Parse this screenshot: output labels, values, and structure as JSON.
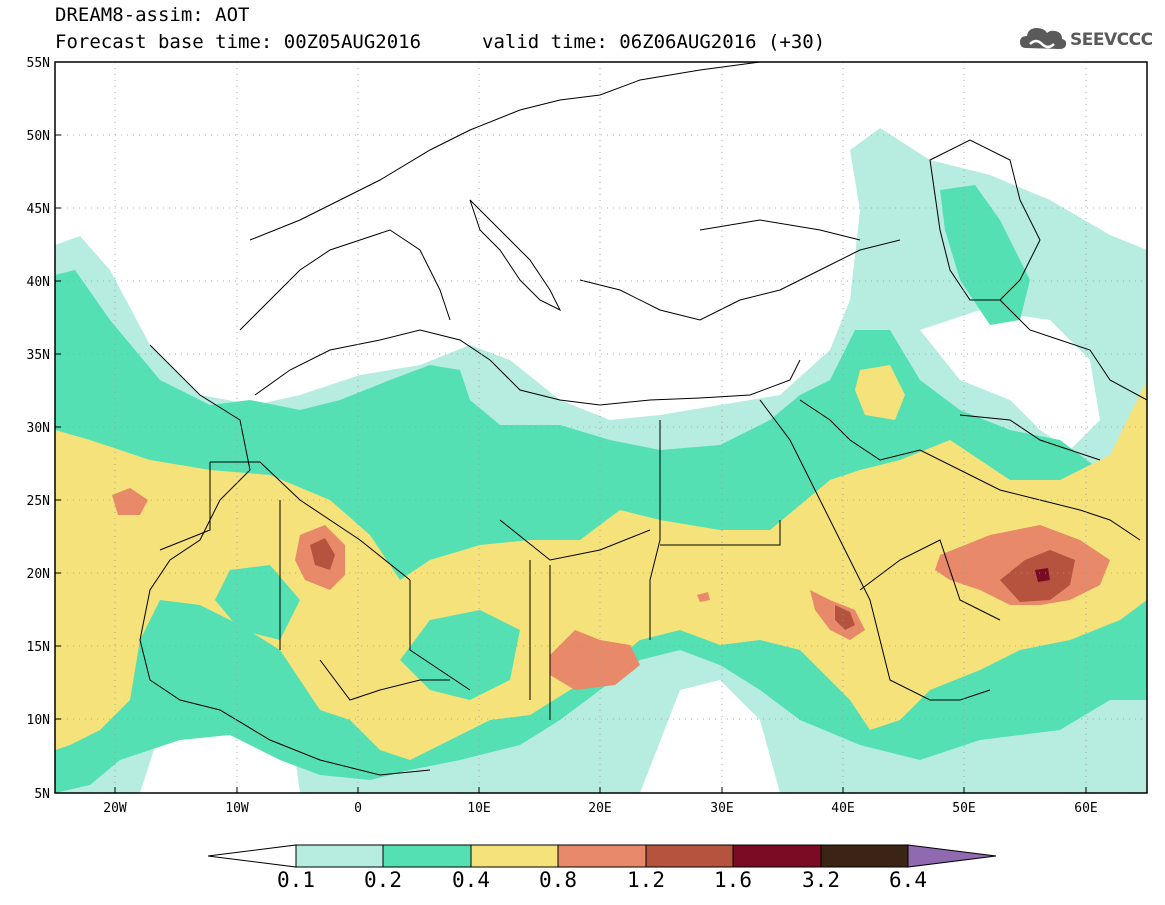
{
  "header": {
    "title": "DREAM8-assim: AOT",
    "base_time": "Forecast base time: 00Z05AUG2016",
    "valid_time": "valid time: 06Z06AUG2016 (+30)",
    "logo_text": "SEEVCCC"
  },
  "map": {
    "lat_labels": [
      "55N",
      "50N",
      "45N",
      "40N",
      "35N",
      "30N",
      "25N",
      "20N",
      "15N",
      "10N",
      "5N"
    ],
    "lon_labels": [
      "20W",
      "10W",
      "0",
      "10E",
      "20E",
      "30E",
      "40E",
      "50E",
      "60E"
    ],
    "extent": {
      "lon_min": -25,
      "lon_max": 65,
      "lat_min": 5,
      "lat_max": 55
    },
    "grid": "dotted"
  },
  "colorbar": {
    "levels": [
      "0.1",
      "0.2",
      "0.4",
      "0.8",
      "1.2",
      "1.6",
      "3.2",
      "6.4"
    ],
    "colors": {
      "under": "#ffffff",
      "c1": "#b6ede0",
      "c2": "#55e0b4",
      "c3": "#f6e27a",
      "c4": "#e8896a",
      "c5": "#b5533e",
      "c6": "#7b0b25",
      "c7": "#3b2416",
      "over": "#8f6ab0"
    }
  }
}
